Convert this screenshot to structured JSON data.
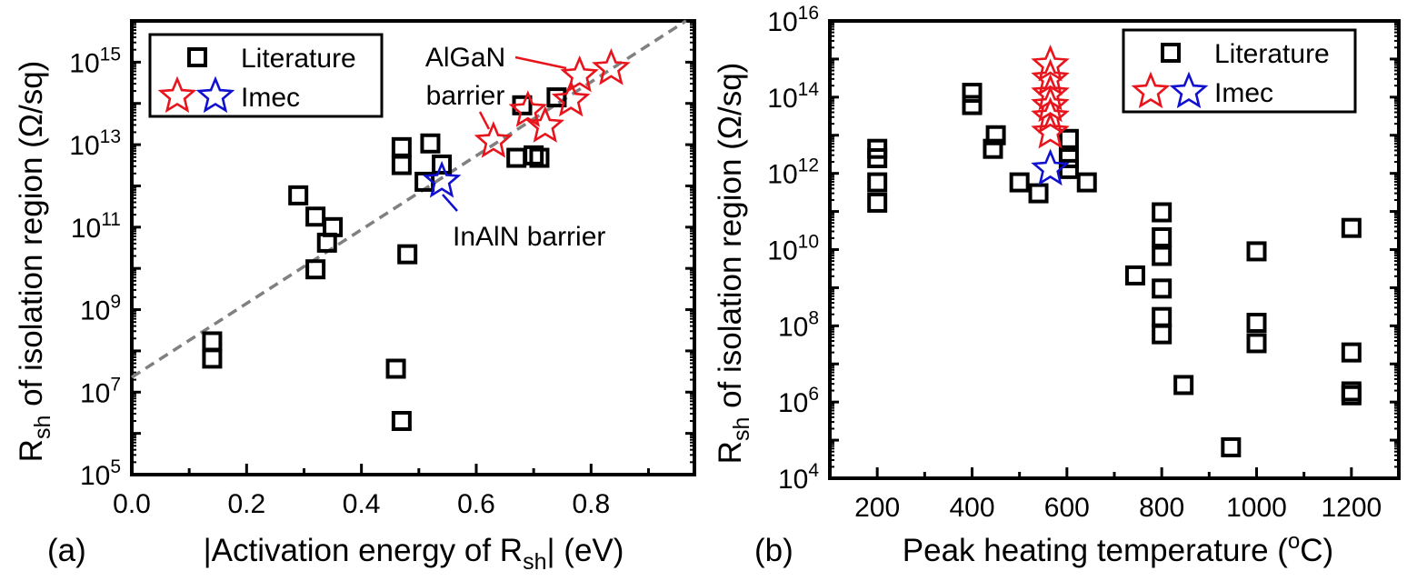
{
  "colors": {
    "literature": "#000000",
    "imec_algan": "#e8141c",
    "imec_inaln": "#1010d0",
    "fit_line": "#808080"
  },
  "chart_data": [
    {
      "type": "scatter",
      "panel_label": "(a)",
      "xlabel": {
        "main": "|Activation energy of R",
        "sub": "sh",
        "rest": "| (eV)"
      },
      "ylabel": {
        "main": "R",
        "sub": "sh",
        "rest": " of isolation region (Ω/sq)"
      },
      "xlim": [
        0,
        0.98
      ],
      "ylim": [
        100000.0,
        1e+16
      ],
      "yscale": "log",
      "x_ticks": [
        "0.0",
        "0.2",
        "0.4",
        "0.6",
        "0.8"
      ],
      "y_ticks": [
        "10^5",
        "10^7",
        "10^9",
        "10^11",
        "10^13",
        "10^15"
      ],
      "legend": {
        "position": "top-left",
        "entries": [
          "Literature",
          "Imec"
        ]
      },
      "annotations": [
        {
          "text_lines": [
            "AlGaN",
            "barrier"
          ],
          "color": "imec_algan"
        },
        {
          "text_lines": [
            "InAlN barrier"
          ],
          "color": "imec_inaln"
        }
      ],
      "fit_line": {
        "style": "dashed",
        "log10_intercept": 7.36,
        "log10_slope_per_eV": 8.95
      },
      "series": [
        {
          "name": "Literature",
          "marker": "square",
          "color": "literature",
          "points": [
            [
              0.14,
              170000000.0
            ],
            [
              0.14,
              65000000.0
            ],
            [
              0.29,
              590000000000.0
            ],
            [
              0.32,
              180000000000.0
            ],
            [
              0.35,
              100000000000.0
            ],
            [
              0.34,
              42000000000.0
            ],
            [
              0.32,
              9500000000.0
            ],
            [
              0.47,
              8700000000000.0
            ],
            [
              0.47,
              3200000000000.0
            ],
            [
              0.52,
              10700000000000.0
            ],
            [
              0.54,
              3300000000000.0
            ],
            [
              0.51,
              1260000000000.0
            ],
            [
              0.48,
              22000000000.0
            ],
            [
              0.46,
              37000000.0
            ],
            [
              0.47,
              2000000.0
            ],
            [
              0.67,
              4800000000000.0
            ],
            [
              0.7,
              5500000000000.0
            ],
            [
              0.71,
              4800000000000.0
            ],
            [
              0.68,
              90000000000000.0
            ],
            [
              0.74,
              140000000000000.0
            ]
          ]
        },
        {
          "name": "Imec",
          "marker": "star",
          "color": "imec_algan",
          "points": [
            [
              0.63,
              12000000000000.0
            ],
            [
              0.69,
              67000000000000.0
            ],
            [
              0.72,
              28000000000000.0
            ],
            [
              0.765,
              120000000000000.0
            ],
            [
              0.78,
              470000000000000.0
            ],
            [
              0.835,
              700000000000000.0
            ]
          ]
        },
        {
          "name": "Imec",
          "marker": "star",
          "color": "imec_inaln",
          "points": [
            [
              0.54,
              1300000000000.0
            ]
          ]
        }
      ]
    },
    {
      "type": "scatter",
      "panel_label": "(b)",
      "xlabel": {
        "main": "Peak heating temperature (",
        "sup": "o",
        "rest": "C)"
      },
      "ylabel": {
        "main": "R",
        "sub": "sh",
        "rest": " of isolation region (Ω/sq)"
      },
      "xlim": [
        100,
        1300
      ],
      "ylim": [
        10000.0,
        1e+16
      ],
      "yscale": "log",
      "x_ticks": [
        "200",
        "400",
        "600",
        "800",
        "1000",
        "1200"
      ],
      "y_ticks": [
        "10^4",
        "10^6",
        "10^8",
        "10^10",
        "10^12",
        "10^14",
        "10^16"
      ],
      "legend": {
        "position": "top-right",
        "entries": [
          "Literature",
          "Imec"
        ]
      },
      "series": [
        {
          "name": "Literature",
          "marker": "square",
          "color": "literature",
          "points": [
            [
              200,
              4400000000000.0
            ],
            [
              200,
              2500000000000.0
            ],
            [
              200,
              580000000000.0
            ],
            [
              200,
              170000000000.0
            ],
            [
              400,
              130000000000000.0
            ],
            [
              400,
              62000000000000.0
            ],
            [
              450,
              10000000000000.0
            ],
            [
              444,
              4400000000000.0
            ],
            [
              500,
              580000000000.0
            ],
            [
              540,
              300000000000.0
            ],
            [
              604,
              8000000000000.0
            ],
            [
              604,
              2500000000000.0
            ],
            [
              604,
              1300000000000.0
            ],
            [
              642,
              580000000000.0
            ],
            [
              800,
              95000000000.0
            ],
            [
              800,
              21000000000.0
            ],
            [
              800,
              6800000000.0
            ],
            [
              744,
              2100000000.0
            ],
            [
              800,
              950000000.0
            ],
            [
              800,
              170000000.0
            ],
            [
              800,
              60000000.0
            ],
            [
              846,
              2800000.0
            ],
            [
              1000,
              9000000000.0
            ],
            [
              1000,
              120000000.0
            ],
            [
              1000,
              35000000.0
            ],
            [
              946,
              65000.0
            ],
            [
              1200,
              37000000000.0
            ],
            [
              1200,
              20000000.0
            ],
            [
              1200,
              1900000.0
            ],
            [
              1200,
              1500000.0
            ]
          ]
        },
        {
          "name": "Imec",
          "marker": "star",
          "color": "imec_algan",
          "points": [
            [
              565,
              700000000000000.0
            ],
            [
              565,
              300000000000000.0
            ],
            [
              565,
              120000000000000.0
            ],
            [
              565,
              60000000000000.0
            ],
            [
              565,
              30000000000000.0
            ],
            [
              565,
              12000000000000.0
            ]
          ]
        },
        {
          "name": "Imec",
          "marker": "star",
          "color": "imec_inaln",
          "points": [
            [
              565,
              1300000000000.0
            ]
          ]
        }
      ]
    }
  ]
}
